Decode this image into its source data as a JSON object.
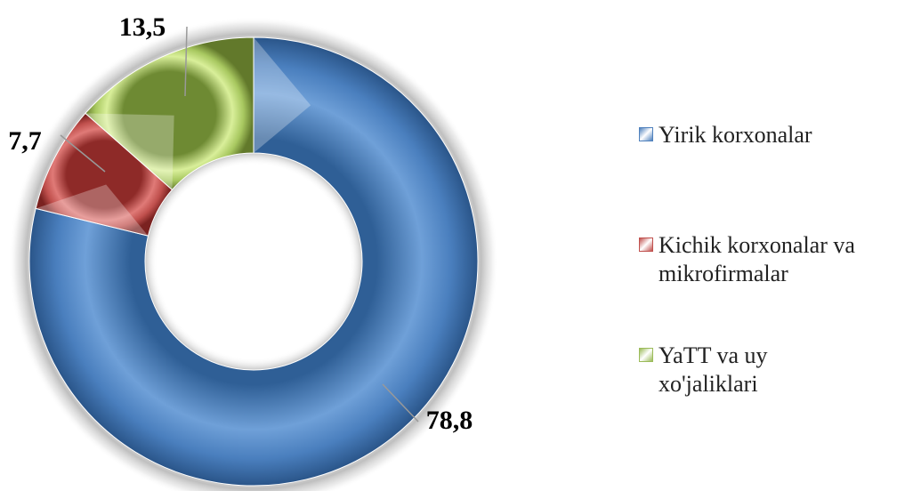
{
  "chart_data": {
    "type": "pie",
    "variant": "donut",
    "title": "",
    "slices": [
      {
        "name": "Yirik korxonalar",
        "value": 78.8,
        "label": "78,8",
        "color": "#4f81bd"
      },
      {
        "name": "Kichik korxonalar va mikrofirmalar",
        "value": 7.7,
        "label": "7,7",
        "color": "#c0504d"
      },
      {
        "name": "YaTT va uy xo'jaliklari",
        "value": 13.5,
        "label": "13,5",
        "color": "#9bbb59"
      }
    ],
    "legend_position": "right"
  },
  "legend": {
    "items": [
      {
        "line1": "Yirik korxonalar",
        "line2": ""
      },
      {
        "line1": "Kichik korxonalar va",
        "line2": "mikrofirmalar"
      },
      {
        "line1": "YaTT va uy",
        "line2": "xo'jaliklari"
      }
    ]
  }
}
